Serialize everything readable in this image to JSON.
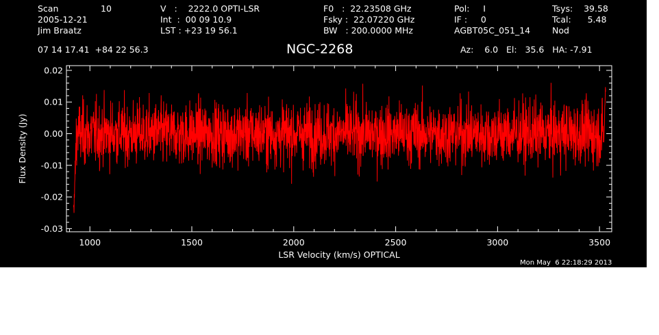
{
  "header": {
    "col1": {
      "scan_label": "Scan",
      "scan_value": "10",
      "date": "2005-12-21",
      "observer": "Jim Braatz",
      "coords": "07 14 17.41  +84 22 56.3"
    },
    "col2": {
      "velocity": "V   :    2222.0 OPTI-LSR",
      "int": "Int  :  00 09 10.9",
      "lst": "LST : +23 19 56.1"
    },
    "col3": {
      "f0": "F0   :  22.23508 GHz",
      "fsky": "Fsky :  22.07220 GHz",
      "bw": "BW   : 200.0000 MHz"
    },
    "col4": {
      "pol": "Pol:     I",
      "if": "IF :     0",
      "project": "AGBT05C_051_14"
    },
    "col5": {
      "tsys": "Tsys:    39.58",
      "tcal": "Tcal:      5.48",
      "mode": "Nod"
    },
    "pointing": "Az:    6.0   El:   35.6   HA: -7.91"
  },
  "footer": {
    "timestamp": "Mon May  6 22:18:29 2013"
  },
  "colors": {
    "background": "#000000",
    "foreground": "#ffffff",
    "trace": "#ff0000"
  },
  "chart_data": {
    "type": "line",
    "title": "NGC-2268",
    "xlabel": "LSR Velocity (km/s) OPTICAL",
    "ylabel": "Flux Density (Jy)",
    "xlim": [
      885,
      3560
    ],
    "ylim": [
      -0.031,
      0.0215
    ],
    "xticks": [
      1000,
      1500,
      2000,
      2500,
      3000,
      3500
    ],
    "xtick_labels": [
      "1000",
      "1500",
      "2000",
      "2500",
      "3000",
      "3500"
    ],
    "yticks": [
      -0.03,
      -0.02,
      -0.01,
      0.0,
      0.01,
      0.02
    ],
    "ytick_labels": [
      "-0.03",
      "-0.02",
      "-0.01",
      "0.00",
      "0.01",
      "0.02"
    ],
    "grid": false,
    "series": [
      {
        "x_range": [
          920,
          3530
        ],
        "noise_rms_jy": 0.005,
        "mean_jy": 0.0,
        "edge_values": {
          "low_end_min": -0.026,
          "high_end_max": 0.016
        }
      }
    ]
  }
}
